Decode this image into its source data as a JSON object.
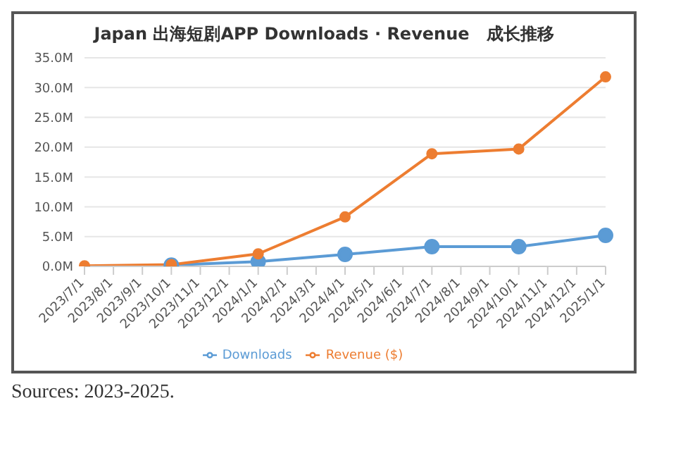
{
  "chart_data": {
    "type": "line",
    "title": "Japan  出海短剧APP Downloads · Revenue　成长推移",
    "categories": [
      "2023/7/1",
      "2023/8/1",
      "2023/9/1",
      "2023/10/1",
      "2023/11/1",
      "2023/12/1",
      "2024/1/1",
      "2024/2/1",
      "2024/3/1",
      "2024/4/1",
      "2024/5/1",
      "2024/6/1",
      "2024/7/1",
      "2024/8/1",
      "2024/9/1",
      "2024/10/1",
      "2024/11/1",
      "2024/12/1",
      "2025/1/1"
    ],
    "series": [
      {
        "name": "Downloads",
        "color": "#5b9bd5",
        "values": [
          null,
          null,
          null,
          0.2,
          null,
          null,
          0.8,
          null,
          null,
          2.0,
          null,
          null,
          3.3,
          null,
          null,
          3.3,
          null,
          null,
          5.2
        ]
      },
      {
        "name": "Revenue ($)",
        "color": "#ed7d31",
        "values": [
          0.1,
          null,
          null,
          0.3,
          null,
          null,
          2.1,
          null,
          null,
          8.3,
          null,
          null,
          18.9,
          null,
          null,
          19.7,
          null,
          null,
          31.8
        ]
      }
    ],
    "ylim": [
      0,
      35
    ],
    "yticks": [
      {
        "value": 0,
        "label": "0.0M"
      },
      {
        "value": 5,
        "label": "5.0M"
      },
      {
        "value": 10,
        "label": "10.0M"
      },
      {
        "value": 15,
        "label": "15.0M"
      },
      {
        "value": 20,
        "label": "20.0M"
      },
      {
        "value": 25,
        "label": "25.0M"
      },
      {
        "value": 30,
        "label": "30.0M"
      },
      {
        "value": 35,
        "label": "35.0M"
      }
    ],
    "grid": "y",
    "legend": "bottom",
    "marker": "circle",
    "line_style": "solid",
    "annotations": [
      "Sources: 2023-2025."
    ]
  }
}
